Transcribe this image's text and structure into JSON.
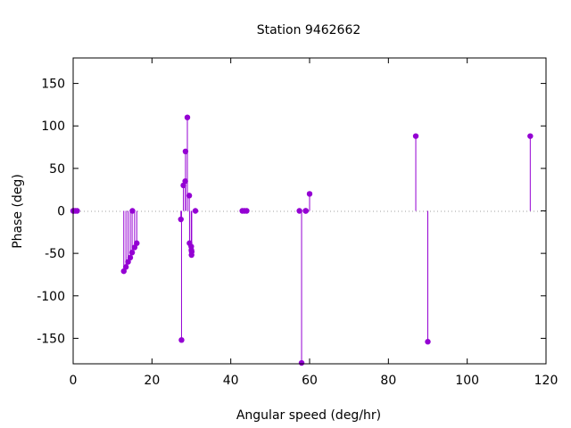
{
  "chart_data": {
    "type": "scatter",
    "style": "impulses-with-points",
    "title": "Station 9462662",
    "xlabel": "Angular speed (deg/hr)",
    "ylabel": "Phase (deg)",
    "xlim": [
      0,
      120
    ],
    "ylim": [
      -180,
      180
    ],
    "xticks": [
      0,
      20,
      40,
      60,
      80,
      100,
      120
    ],
    "yticks": [
      -150,
      -100,
      -50,
      0,
      50,
      100,
      150
    ],
    "zero_line": true,
    "grid": false,
    "series_color": "#9400d3",
    "points": [
      {
        "x": 0.0,
        "y": 0
      },
      {
        "x": 0.04,
        "y": 0
      },
      {
        "x": 0.08,
        "y": 0
      },
      {
        "x": 0.54,
        "y": 0
      },
      {
        "x": 1.0,
        "y": 0
      },
      {
        "x": 12.85,
        "y": -71
      },
      {
        "x": 13.4,
        "y": -66
      },
      {
        "x": 13.94,
        "y": -60
      },
      {
        "x": 14.49,
        "y": -55
      },
      {
        "x": 14.96,
        "y": -49
      },
      {
        "x": 15.04,
        "y": 0
      },
      {
        "x": 15.59,
        "y": -43
      },
      {
        "x": 16.14,
        "y": -38
      },
      {
        "x": 27.34,
        "y": -10
      },
      {
        "x": 27.5,
        "y": -152
      },
      {
        "x": 27.97,
        "y": 30
      },
      {
        "x": 28.44,
        "y": 35
      },
      {
        "x": 28.51,
        "y": 70
      },
      {
        "x": 28.98,
        "y": 110
      },
      {
        "x": 29.46,
        "y": 18
      },
      {
        "x": 29.53,
        "y": -38
      },
      {
        "x": 29.96,
        "y": -42
      },
      {
        "x": 30.0,
        "y": -46
      },
      {
        "x": 30.04,
        "y": -52
      },
      {
        "x": 30.08,
        "y": -48
      },
      {
        "x": 31.02,
        "y": 0
      },
      {
        "x": 42.93,
        "y": 0
      },
      {
        "x": 43.48,
        "y": 0
      },
      {
        "x": 44.03,
        "y": 0
      },
      {
        "x": 57.42,
        "y": 0
      },
      {
        "x": 57.97,
        "y": -179
      },
      {
        "x": 58.98,
        "y": 0
      },
      {
        "x": 59.07,
        "y": 0
      },
      {
        "x": 60.0,
        "y": 20
      },
      {
        "x": 86.95,
        "y": 88
      },
      {
        "x": 90.0,
        "y": -154
      },
      {
        "x": 116.0,
        "y": 88
      }
    ]
  }
}
